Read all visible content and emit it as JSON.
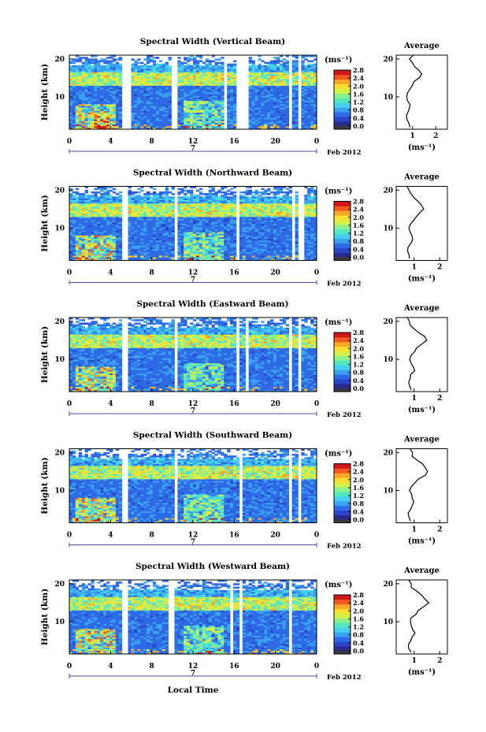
{
  "figure": {
    "xlabel": "Local Time",
    "date_prefix": "7",
    "date_suffix": "Feb 2012",
    "ylabel": "Height (km)",
    "cbar_unit": "(ms⁻¹)",
    "avg_title": "Average",
    "avg_xlabel": "(ms⁻¹)"
  },
  "colors": {
    "scale": [
      "#2a2a8c",
      "#2a45c8",
      "#2e6ae6",
      "#3aa0f0",
      "#45d0f0",
      "#55e8c0",
      "#8cf08c",
      "#d4f04a",
      "#f8e030",
      "#f8a828",
      "#f05a20",
      "#d01818"
    ],
    "bottom": "#3a3a3a"
  },
  "chart_data": [
    {
      "type": "heatmap",
      "title": "Spectral Width (Vertical Beam)",
      "x_ticks": [
        "0",
        "4",
        "8",
        "12",
        "16",
        "20",
        "0"
      ],
      "xlim": [
        0,
        24
      ],
      "y_ticks": [
        "10",
        "20"
      ],
      "ylim": [
        1.5,
        21
      ],
      "cbar_ticks": [
        "2.8",
        "2.4",
        "2.0",
        "1.6",
        "1.2",
        "0.8",
        "0.4",
        "0.0"
      ],
      "cbar_range": [
        0,
        2.8
      ],
      "data_gaps": [
        [
          5.2,
          5.9
        ],
        [
          9.8,
          10.5
        ],
        [
          15.1,
          15.4
        ],
        [
          16.3,
          17.5
        ],
        [
          21.4,
          21.6
        ],
        [
          22.3,
          22.6
        ]
      ],
      "average": {
        "x_ticks": [
          "1",
          "2"
        ],
        "xlim": [
          0.3,
          2.5
        ],
        "ylim": [
          1.5,
          21
        ],
        "profile_x": [
          0.9,
          0.85,
          0.8,
          0.75,
          0.8,
          0.85,
          0.9,
          0.8,
          0.75,
          0.8,
          0.9,
          1.0,
          1.1,
          1.3,
          1.4,
          1.25,
          1.1,
          1.0,
          0.9,
          1.0
        ],
        "profile_y": [
          2,
          3,
          4,
          5,
          6,
          7,
          8,
          9,
          10,
          11,
          12,
          13,
          14,
          15,
          16,
          17,
          18,
          19,
          20,
          21
        ]
      }
    },
    {
      "type": "heatmap",
      "title": "Spectral Width (Northward Beam)",
      "x_ticks": [
        "0",
        "4",
        "8",
        "12",
        "16",
        "20",
        "0"
      ],
      "xlim": [
        0,
        24
      ],
      "y_ticks": [
        "10",
        "20"
      ],
      "ylim": [
        1.5,
        21
      ],
      "cbar_ticks": [
        "2.8",
        "2.4",
        "2.0",
        "1.6",
        "1.2",
        "0.8",
        "0.4",
        "0.0"
      ],
      "cbar_range": [
        0,
        2.8
      ],
      "data_gaps": [
        [
          5.2,
          5.7
        ],
        [
          10.1,
          10.6
        ],
        [
          16.3,
          16.6
        ],
        [
          21.6,
          21.9
        ],
        [
          22.3,
          22.7
        ]
      ],
      "average": {
        "x_ticks": [
          "1",
          "2"
        ],
        "xlim": [
          0.3,
          2.3
        ],
        "ylim": [
          1.5,
          21
        ],
        "profile_x": [
          0.85,
          0.8,
          0.75,
          0.8,
          0.85,
          0.95,
          0.9,
          0.85,
          0.8,
          0.85,
          0.95,
          1.05,
          1.2,
          1.35,
          1.3,
          1.15,
          1.0,
          0.9,
          0.8,
          0.75
        ],
        "profile_y": [
          2,
          3,
          4,
          5,
          6,
          7,
          8,
          9,
          10,
          11,
          12,
          13,
          14,
          15,
          16,
          17,
          18,
          19,
          20,
          21
        ]
      }
    },
    {
      "type": "heatmap",
      "title": "Spectral Width (Eastward Beam)",
      "x_ticks": [
        "0",
        "4",
        "8",
        "12",
        "16",
        "20",
        "0"
      ],
      "xlim": [
        0,
        24
      ],
      "y_ticks": [
        "10",
        "20"
      ],
      "ylim": [
        1.5,
        21
      ],
      "cbar_ticks": [
        "2.8",
        "2.4",
        "2.0",
        "1.6",
        "1.2",
        "0.8",
        "0.4",
        "0.0"
      ],
      "cbar_range": [
        0,
        2.8
      ],
      "data_gaps": [
        [
          5.2,
          5.7
        ],
        [
          10.1,
          10.6
        ],
        [
          16.1,
          16.5
        ],
        [
          17.1,
          17.4
        ],
        [
          21.4,
          21.7
        ],
        [
          22.3,
          22.6
        ]
      ],
      "average": {
        "x_ticks": [
          "1",
          "2"
        ],
        "xlim": [
          0.3,
          2.3
        ],
        "ylim": [
          1.5,
          21
        ],
        "profile_x": [
          0.9,
          0.85,
          0.8,
          0.85,
          0.9,
          1.0,
          0.95,
          0.9,
          0.85,
          0.9,
          1.0,
          1.1,
          1.3,
          1.5,
          1.4,
          1.2,
          1.0,
          0.85,
          0.8,
          0.75
        ],
        "profile_y": [
          2,
          3,
          4,
          5,
          6,
          7,
          8,
          9,
          10,
          11,
          12,
          13,
          14,
          15,
          16,
          17,
          18,
          19,
          20,
          21
        ]
      }
    },
    {
      "type": "heatmap",
      "title": "Spectral Width (Southward Beam)",
      "x_ticks": [
        "0",
        "4",
        "8",
        "12",
        "16",
        "20",
        "0"
      ],
      "xlim": [
        0,
        24
      ],
      "y_ticks": [
        "10",
        "20"
      ],
      "ylim": [
        1.5,
        21
      ],
      "cbar_ticks": [
        "2.8",
        "2.4",
        "2.0",
        "1.6",
        "1.2",
        "0.8",
        "0.4",
        "0.0"
      ],
      "cbar_range": [
        0,
        2.8
      ],
      "data_gaps": [
        [
          5.2,
          5.7
        ],
        [
          10.1,
          10.6
        ],
        [
          16.4,
          16.8
        ],
        [
          21.2,
          21.5
        ],
        [
          22.3,
          22.6
        ]
      ],
      "average": {
        "x_ticks": [
          "1",
          "2"
        ],
        "xlim": [
          0.3,
          2.3
        ],
        "ylim": [
          1.5,
          21
        ],
        "profile_x": [
          0.85,
          0.8,
          0.8,
          0.85,
          0.9,
          1.0,
          0.95,
          0.9,
          0.85,
          0.9,
          1.05,
          1.2,
          1.4,
          1.55,
          1.45,
          1.3,
          1.1,
          0.95,
          0.9,
          0.85
        ],
        "profile_y": [
          2,
          3,
          4,
          5,
          6,
          7,
          8,
          9,
          10,
          11,
          12,
          13,
          14,
          15,
          16,
          17,
          18,
          19,
          20,
          21
        ]
      }
    },
    {
      "type": "heatmap",
      "title": "Spectral Width (Westward Beam)",
      "x_ticks": [
        "0",
        "4",
        "8",
        "12",
        "16",
        "20",
        "0"
      ],
      "xlim": [
        0,
        24
      ],
      "y_ticks": [
        "10",
        "20"
      ],
      "ylim": [
        1.5,
        21
      ],
      "cbar_ticks": [
        "2.8",
        "2.4",
        "2.0",
        "1.6",
        "1.2",
        "0.8",
        "0.4",
        "0.0"
      ],
      "cbar_range": [
        0,
        2.8
      ],
      "data_gaps": [
        [
          5.2,
          5.7
        ],
        [
          9.6,
          10.2
        ],
        [
          15.6,
          15.9
        ],
        [
          16.4,
          16.7
        ],
        [
          21.4,
          21.7
        ],
        [
          22.4,
          22.6
        ]
      ],
      "average": {
        "x_ticks": [
          "1",
          "2"
        ],
        "xlim": [
          0.3,
          2.3
        ],
        "ylim": [
          1.5,
          21
        ],
        "profile_x": [
          0.85,
          0.8,
          0.8,
          0.85,
          0.9,
          1.0,
          0.95,
          0.9,
          0.85,
          0.9,
          1.05,
          1.2,
          1.4,
          1.6,
          1.45,
          1.3,
          1.1,
          0.9,
          0.85,
          0.8
        ],
        "profile_y": [
          2,
          3,
          4,
          5,
          6,
          7,
          8,
          9,
          10,
          11,
          12,
          13,
          14,
          15,
          16,
          17,
          18,
          19,
          20,
          21
        ]
      }
    }
  ]
}
